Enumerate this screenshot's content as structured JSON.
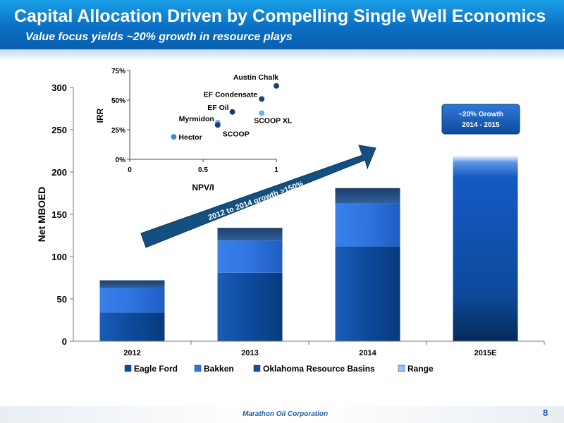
{
  "slide": {
    "title": "Capital Allocation Driven by Compelling Single Well Economics",
    "subtitle": "Value focus yields ~20% growth in resource plays",
    "footer": "Marathon Oil Corporation",
    "page_number": "8"
  },
  "chart_data": [
    {
      "type": "bar",
      "stacked": true,
      "categories": [
        "2012",
        "2013",
        "2014",
        "2015E"
      ],
      "ylabel": "Net MBOED",
      "ylim": [
        0,
        300
      ],
      "yticks": [
        0,
        50,
        100,
        150,
        200,
        250,
        300
      ],
      "series": [
        {
          "name": "Eagle Ford",
          "values": [
            34,
            81,
            112,
            0
          ],
          "color": "#0d4a9c"
        },
        {
          "name": "Bakken",
          "values": [
            29,
            38,
            51,
            0
          ],
          "color": "#2f74e0"
        },
        {
          "name": "Oklahoma Resource Basins",
          "values": [
            9,
            15,
            18,
            0
          ],
          "color": "#1b4f8e"
        },
        {
          "name": "Range",
          "values": [
            0,
            0,
            0,
            220
          ],
          "color": "#1559c4"
        }
      ],
      "legend_position": "bottom",
      "annotations": {
        "arrow_text": "2012 to 2014 growth >150%",
        "callout_line1": "~20% Growth",
        "callout_line2": "2014 - 2015"
      }
    },
    {
      "type": "scatter",
      "xlabel": "NPV/I",
      "ylabel": "IRR",
      "xlim": [
        0,
        1
      ],
      "ylim": [
        0,
        75
      ],
      "xticks": [
        "0",
        "0.5",
        "1"
      ],
      "yticks": [
        "0%",
        "25%",
        "50%",
        "75%"
      ],
      "points": [
        {
          "label": "Austin Chalk",
          "x": 1.0,
          "y": 62,
          "color": "#1b3f73"
        },
        {
          "label": "EF Condensate",
          "x": 0.9,
          "y": 51,
          "color": "#1b3f73"
        },
        {
          "label": "EF Oil",
          "x": 0.7,
          "y": 40,
          "color": "#1b3f73"
        },
        {
          "label": "SCOOP XL",
          "x": 0.9,
          "y": 39,
          "color": "#6bb3ee"
        },
        {
          "label": "Myrmidon",
          "x": 0.6,
          "y": 31,
          "color": "#6bb3ee"
        },
        {
          "label": "SCOOP",
          "x": 0.6,
          "y": 29,
          "color": "#1b3f73"
        },
        {
          "label": "Hector",
          "x": 0.3,
          "y": 19,
          "color": "#3f8cdf"
        }
      ]
    }
  ]
}
